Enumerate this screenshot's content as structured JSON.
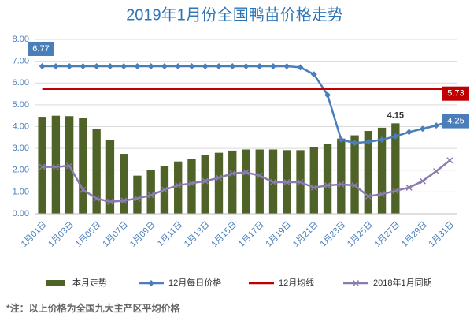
{
  "chart_data": {
    "type": "bar",
    "title": "2019年1月份全国鸭苗价格走势",
    "note": "*注：以上价格为全国九大主产区平均价格",
    "categories": [
      "1月01日",
      null,
      "1月03日",
      null,
      "1月05日",
      null,
      "1月07日",
      null,
      "1月09日",
      null,
      "1月11日",
      null,
      "1月13日",
      null,
      "1月15日",
      null,
      "1月17日",
      null,
      "1月19日",
      null,
      "1月21日",
      null,
      "1月23日",
      null,
      "1月25日",
      null,
      "1月27日",
      null,
      "1月29日",
      null,
      "1月31日"
    ],
    "ylim": [
      0,
      8
    ],
    "yticks": [
      {
        "value": 0,
        "label": "0.00"
      },
      {
        "value": 1,
        "label": "1.00"
      },
      {
        "value": 2,
        "label": "2.00"
      },
      {
        "value": 3,
        "label": "3.00"
      },
      {
        "value": 4,
        "label": "4.00"
      },
      {
        "value": 5,
        "label": "5.00"
      },
      {
        "value": 6,
        "label": "6.00"
      },
      {
        "value": 7,
        "label": "7.00"
      },
      {
        "value": 8,
        "label": "8.00"
      }
    ],
    "grid": true,
    "legend": "bottom",
    "series": [
      {
        "name": "本月走势",
        "type": "bar",
        "color": "#4f6228",
        "values": [
          4.45,
          4.5,
          4.48,
          4.4,
          3.9,
          3.4,
          2.75,
          1.75,
          2.0,
          2.2,
          2.4,
          2.5,
          2.7,
          2.8,
          2.9,
          2.95,
          2.95,
          2.95,
          2.92,
          2.92,
          3.05,
          3.2,
          3.45,
          3.6,
          3.8,
          3.95,
          4.15,
          null,
          null,
          null,
          null
        ],
        "value_labels": [
          null,
          null,
          null,
          null,
          null,
          null,
          null,
          null,
          null,
          null,
          null,
          null,
          null,
          null,
          null,
          null,
          null,
          null,
          null,
          null,
          null,
          null,
          null,
          null,
          null,
          null,
          "4.15",
          null,
          null,
          null,
          null
        ]
      },
      {
        "name": "12月每日价格",
        "type": "line",
        "marker": "diamond",
        "color": "#4a7ebb",
        "values": [
          6.77,
          6.77,
          6.77,
          6.77,
          6.77,
          6.77,
          6.77,
          6.77,
          6.77,
          6.77,
          6.77,
          6.77,
          6.77,
          6.77,
          6.77,
          6.77,
          6.77,
          6.77,
          6.77,
          6.72,
          6.4,
          5.45,
          3.4,
          3.25,
          3.3,
          3.4,
          3.55,
          3.75,
          3.9,
          4.05,
          4.25
        ],
        "value_labels": [
          "6.77",
          null,
          null,
          null,
          null,
          null,
          null,
          null,
          null,
          null,
          null,
          null,
          null,
          null,
          null,
          null,
          null,
          null,
          null,
          null,
          null,
          null,
          null,
          null,
          null,
          null,
          null,
          null,
          null,
          null,
          "4.25"
        ]
      },
      {
        "name": "12月均线",
        "type": "line",
        "marker": "none",
        "color": "#c00000",
        "values": [
          5.73,
          5.73,
          5.73,
          5.73,
          5.73,
          5.73,
          5.73,
          5.73,
          5.73,
          5.73,
          5.73,
          5.73,
          5.73,
          5.73,
          5.73,
          5.73,
          5.73,
          5.73,
          5.73,
          5.73,
          5.73,
          5.73,
          5.73,
          5.73,
          5.73,
          5.73,
          5.73,
          5.73,
          5.73,
          5.73,
          5.73
        ],
        "value_labels": [
          null,
          null,
          null,
          null,
          null,
          null,
          null,
          null,
          null,
          null,
          null,
          null,
          null,
          null,
          null,
          null,
          null,
          null,
          null,
          null,
          null,
          null,
          null,
          null,
          null,
          null,
          null,
          null,
          null,
          null,
          "5.73"
        ]
      },
      {
        "name": "2018年1月同期",
        "type": "line",
        "marker": "x",
        "color": "#8a7bb0",
        "values": [
          2.15,
          2.15,
          2.2,
          1.1,
          0.7,
          0.55,
          0.6,
          0.7,
          0.85,
          1.1,
          1.3,
          1.4,
          1.5,
          1.65,
          1.85,
          1.9,
          1.75,
          1.45,
          1.45,
          1.45,
          1.2,
          1.3,
          1.35,
          1.3,
          0.8,
          0.9,
          1.05,
          1.2,
          1.5,
          1.95,
          2.45
        ]
      }
    ]
  }
}
